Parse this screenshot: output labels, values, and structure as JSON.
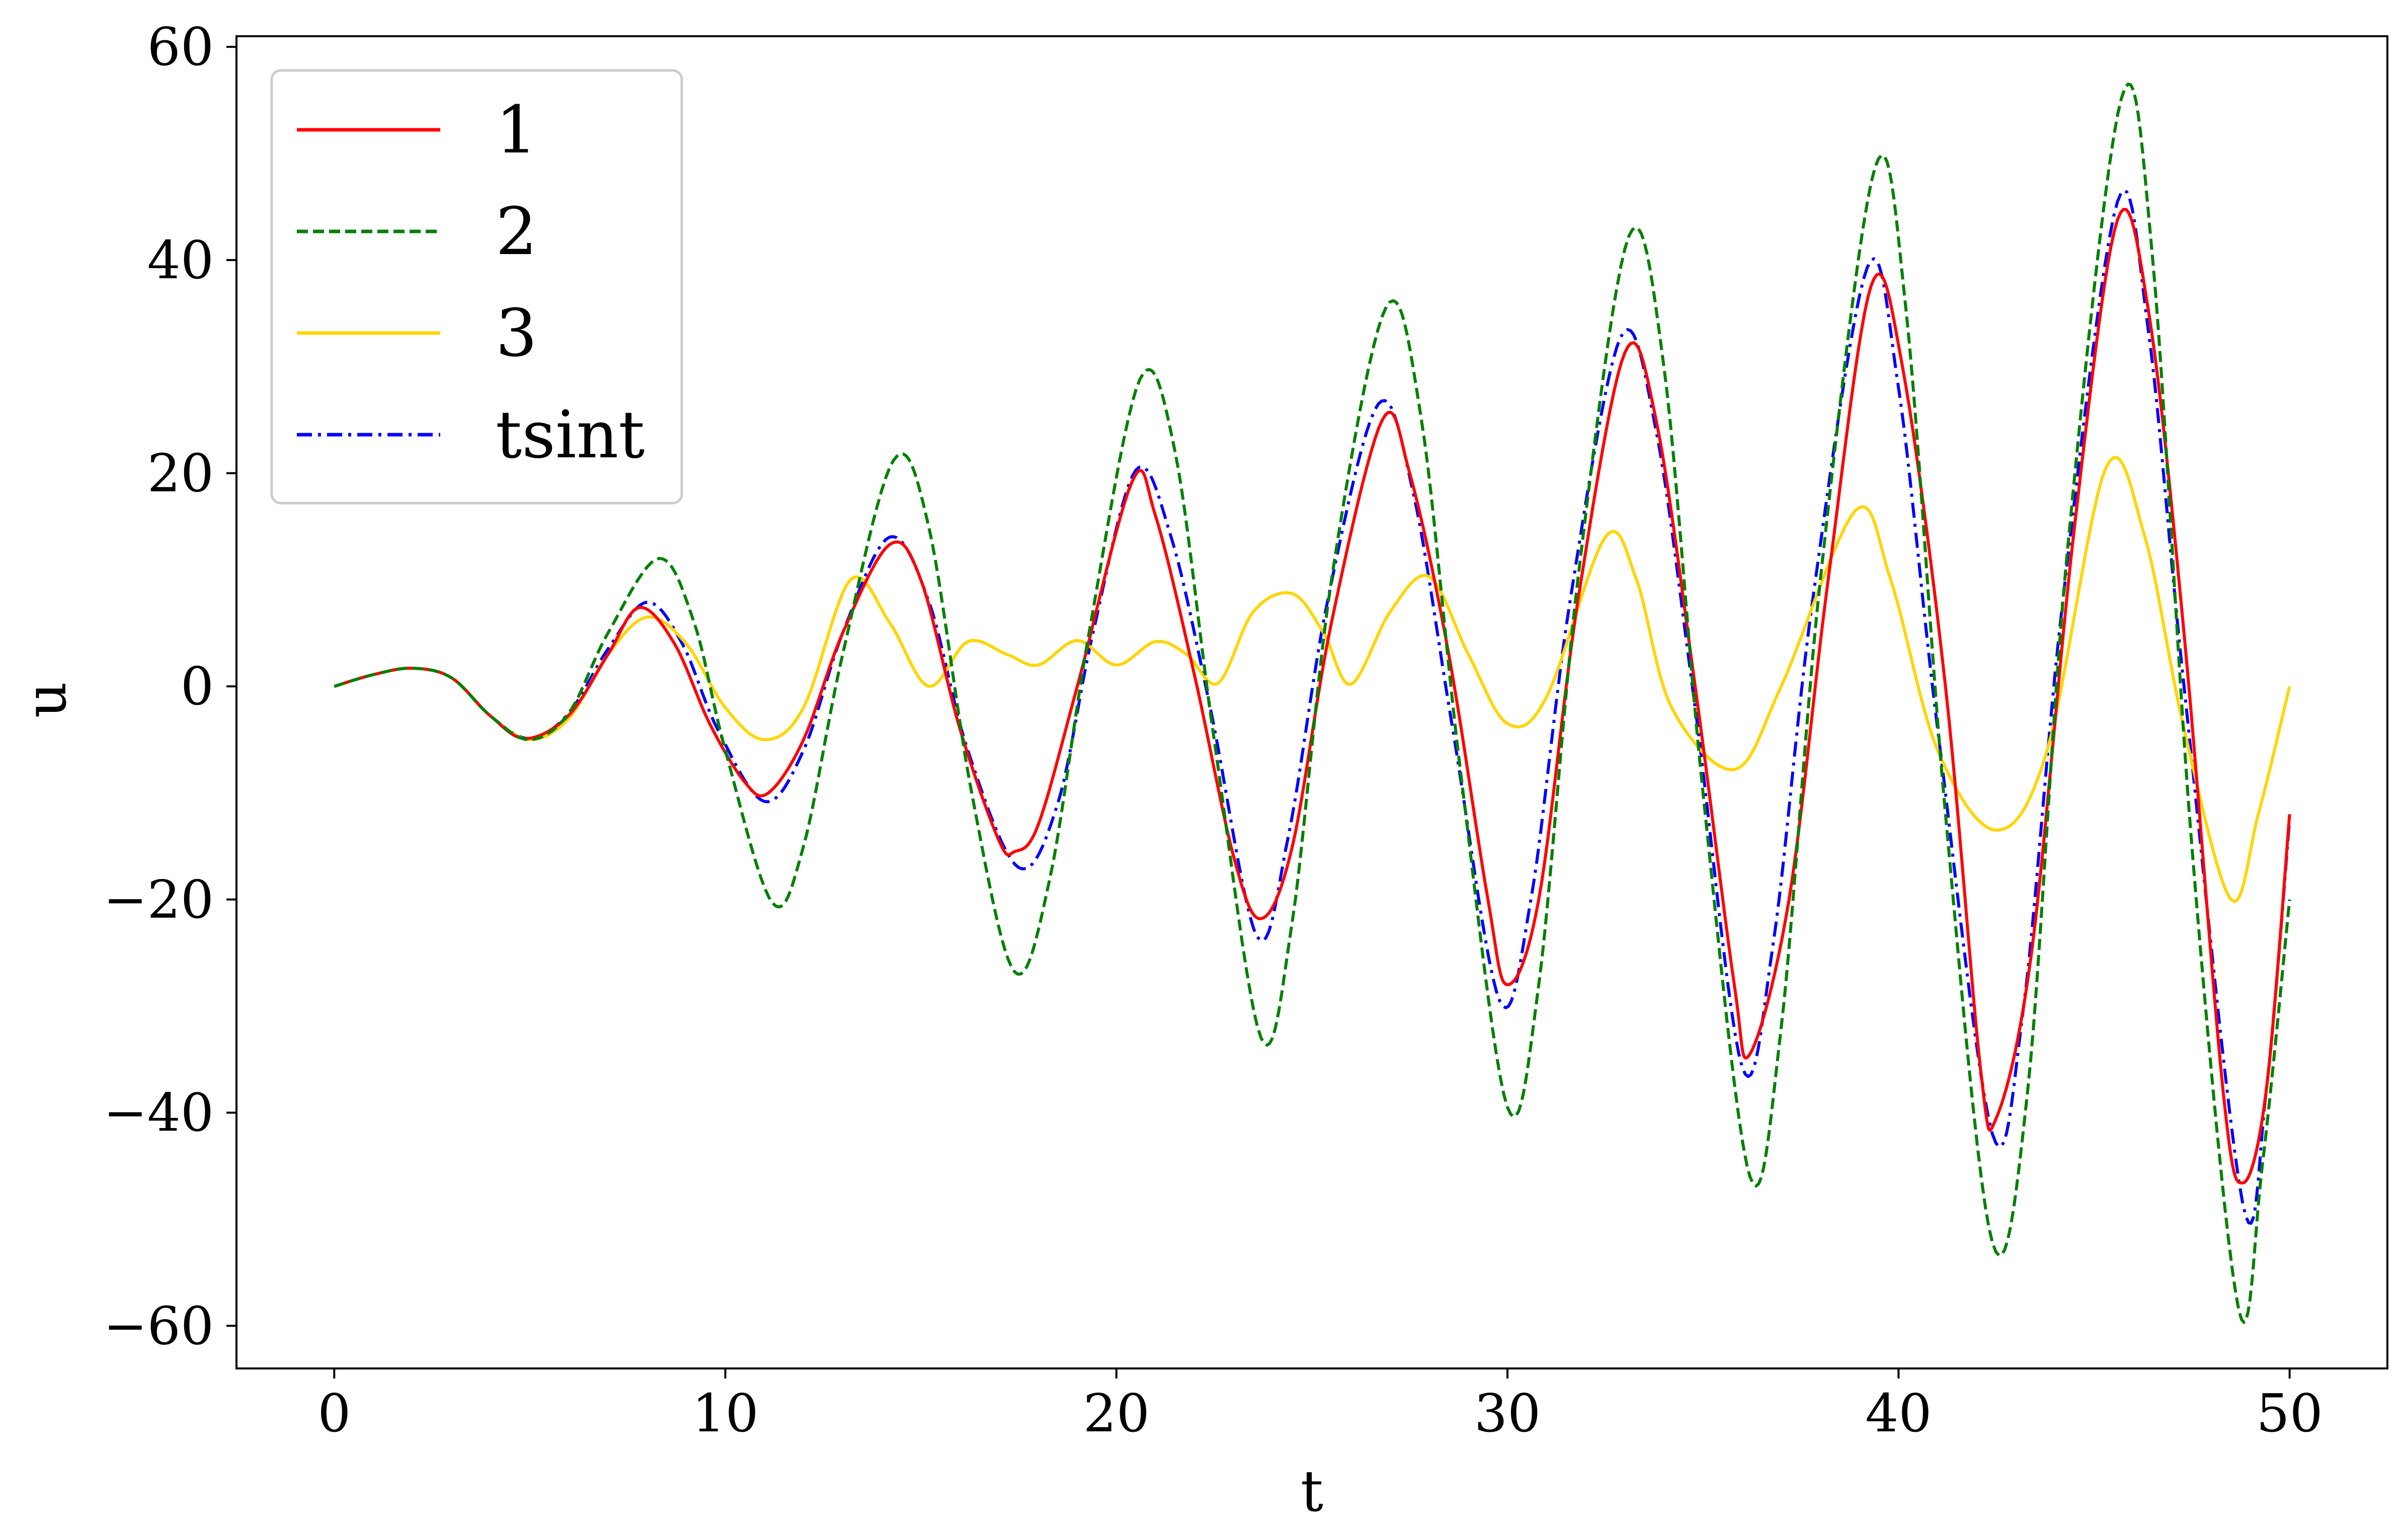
{
  "chart_data": {
    "type": "line",
    "title": "",
    "xlabel": "t",
    "ylabel": "u",
    "xlim": [
      -2.5,
      52.5
    ],
    "ylim": [
      -64,
      61
    ],
    "xticks": [
      0,
      10,
      20,
      30,
      40,
      50
    ],
    "yticks": [
      -60,
      -40,
      -20,
      0,
      20,
      40,
      60
    ],
    "xtick_labels": [
      "0",
      "10",
      "20",
      "30",
      "40",
      "50"
    ],
    "ytick_labels": [
      "−60",
      "−40",
      "−20",
      "0",
      "20",
      "40",
      "60"
    ],
    "grid": false,
    "legend": "top-left",
    "series": [
      {
        "name": "1",
        "color": "#ff0000",
        "dash": "solid",
        "x": [
          0,
          1.0,
          2.0,
          3.0,
          4.0,
          4.9,
          6.0,
          7.0,
          7.8,
          8.7,
          9.6,
          10.5,
          11.1,
          12.0,
          13.0,
          14.2,
          15.0,
          16.0,
          17.0,
          17.4,
          18.0,
          19.0,
          20.4,
          21.0,
          22.0,
          23.0,
          23.7,
          24.5,
          25.5,
          26.8,
          27.5,
          28.5,
          29.5,
          30.0,
          30.8,
          31.8,
          33.0,
          33.8,
          34.8,
          35.8,
          36.2,
          37.2,
          38.2,
          39.3,
          40.1,
          41.2,
          42.1,
          42.5,
          43.4,
          44.5,
          45.6,
          46.4,
          47.3,
          48.3,
          48.8,
          49.4,
          50.0
        ],
        "y": [
          0,
          1.1,
          1.7,
          0.8,
          -2.8,
          -4.9,
          -2.7,
          3.0,
          7.4,
          4.0,
          -3.5,
          -9.0,
          -10.0,
          -5.0,
          5.0,
          13.3,
          10.0,
          -4.0,
          -14.5,
          -15.5,
          -13.0,
          0.0,
          19.2,
          16.0,
          1.0,
          -16.0,
          -21.8,
          -15.0,
          6.0,
          25.0,
          20.0,
          3.0,
          -20.0,
          -28.0,
          -20.0,
          8.0,
          31.3,
          25.0,
          0.0,
          -28.0,
          -34.5,
          -20.0,
          10.0,
          37.6,
          30.0,
          0.0,
          -36.0,
          -40.5,
          -25.0,
          15.0,
          43.8,
          35.0,
          5.0,
          -38.0,
          -46.6,
          -38.0,
          -12.0
        ]
      },
      {
        "name": "2",
        "color": "#008000",
        "dash": "dashed",
        "x": [
          0,
          1.0,
          2.0,
          3.0,
          4.0,
          5.0,
          6.0,
          7.0,
          8.3,
          9.2,
          10.0,
          11.2,
          12.0,
          13.0,
          14.3,
          15.2,
          16.3,
          17.4,
          18.3,
          19.3,
          20.6,
          21.5,
          22.5,
          23.7,
          24.5,
          25.5,
          26.9,
          27.8,
          28.8,
          30.0,
          30.8,
          31.8,
          33.1,
          34.0,
          35.0,
          36.2,
          37.0,
          38.0,
          39.4,
          40.2,
          41.2,
          42.4,
          43.3,
          44.3,
          45.7,
          46.5,
          47.5,
          48.7,
          49.3,
          50.0
        ],
        "y": [
          0,
          1.1,
          1.7,
          0.8,
          -2.8,
          -5.0,
          -2.5,
          5.0,
          12.0,
          6.0,
          -6.0,
          -20.3,
          -15.0,
          3.0,
          21.2,
          15.0,
          -10.0,
          -26.8,
          -18.0,
          5.0,
          28.8,
          22.0,
          -5.0,
          -33.0,
          -22.0,
          10.0,
          35.6,
          25.0,
          -8.0,
          -39.5,
          -28.0,
          10.0,
          42.2,
          30.0,
          -10.0,
          -46.0,
          -32.0,
          10.0,
          48.7,
          35.0,
          -12.0,
          -52.2,
          -38.0,
          12.0,
          55.2,
          40.0,
          -15.0,
          -58.5,
          -45.0,
          -20.0
        ]
      },
      {
        "name": "3",
        "color": "#ffd500",
        "dash": "solid",
        "x": [
          0,
          1.0,
          2.0,
          3.0,
          4.0,
          5.0,
          6.0,
          7.0,
          8.0,
          9.0,
          10.0,
          11.0,
          12.0,
          13.2,
          14.2,
          15.2,
          16.2,
          17.2,
          18.0,
          19.0,
          20.0,
          21.0,
          21.8,
          22.6,
          23.5,
          24.5,
          25.3,
          26.0,
          27.0,
          28.0,
          29.0,
          30.0,
          31.0,
          32.5,
          33.3,
          34.2,
          35.8,
          37.0,
          38.9,
          39.8,
          41.0,
          42.5,
          43.8,
          45.3,
          46.3,
          47.3,
          48.5,
          49.2,
          50.0
        ],
        "y": [
          0,
          1.1,
          1.7,
          0.8,
          -2.8,
          -5.0,
          -3.0,
          3.0,
          6.5,
          4.0,
          -2.0,
          -5.0,
          -2.0,
          10.0,
          6.0,
          0.0,
          4.2,
          3.0,
          2.0,
          4.3,
          2.0,
          4.2,
          3.0,
          0.3,
          7.0,
          8.7,
          5.0,
          0.2,
          7.0,
          10.3,
          3.0,
          -3.5,
          -1.0,
          14.0,
          10.0,
          -2.0,
          -7.8,
          0.0,
          16.5,
          10.0,
          -6.0,
          -13.5,
          -6.0,
          20.5,
          14.0,
          -4.0,
          -20.0,
          -12.0,
          0.0
        ]
      },
      {
        "name": "tsint",
        "color": "#0000ff",
        "dash": "dashdot",
        "x": [
          0,
          1.0,
          2.0,
          3.0,
          4.0,
          5.0,
          6.0,
          7.0,
          8.0,
          8.9,
          9.8,
          11.0,
          12.0,
          13.0,
          14.2,
          15.2,
          16.2,
          17.5,
          18.5,
          19.4,
          20.5,
          21.4,
          22.4,
          23.6,
          24.4,
          25.4,
          26.7,
          27.6,
          28.6,
          29.8,
          30.6,
          31.6,
          32.9,
          33.8,
          34.8,
          36.0,
          36.8,
          37.8,
          39.2,
          40.0,
          41.0,
          42.4,
          43.2,
          44.2,
          45.6,
          46.4,
          47.3,
          48.8,
          49.4,
          50.0
        ],
        "y": [
          0,
          1.1,
          1.7,
          0.8,
          -2.8,
          -4.9,
          -2.5,
          3.5,
          7.9,
          4.0,
          -4.0,
          -10.8,
          -6.0,
          5.0,
          14.0,
          8.0,
          -6.0,
          -17.0,
          -11.0,
          5.0,
          20.3,
          14.0,
          -2.0,
          -23.5,
          -14.0,
          8.0,
          26.5,
          18.0,
          -4.0,
          -29.5,
          -20.0,
          8.0,
          32.8,
          24.0,
          -2.0,
          -35.7,
          -24.0,
          8.0,
          39.3,
          28.0,
          -4.0,
          -42.0,
          -30.0,
          8.0,
          45.5,
          33.0,
          0.0,
          -48.5,
          -38.0,
          -12.5
        ]
      }
    ]
  }
}
